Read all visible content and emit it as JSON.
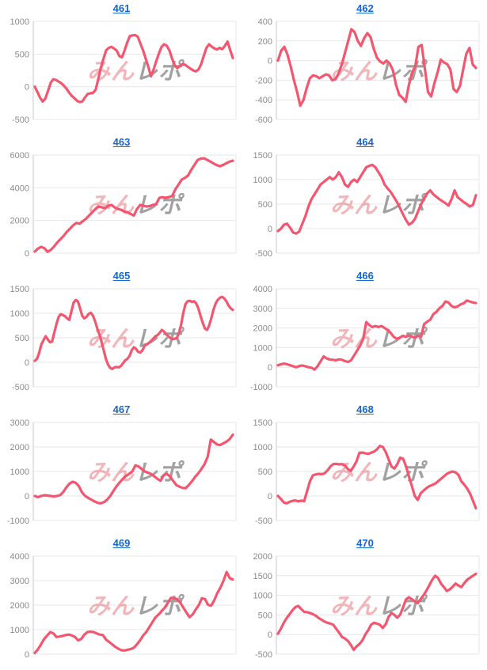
{
  "page": {
    "background": "#ffffff"
  },
  "colors": {
    "line": "#f4566f",
    "grid": "#e7e7e7",
    "axis": "#c8c8c8",
    "plot_right_border": "#e7e7e7",
    "tick_label": "#8b8b8b",
    "link": "#1566d0",
    "watermark_pink": "rgba(232,120,130,0.55)",
    "watermark_gray": "rgba(148,148,148,0.88)"
  },
  "watermark": {
    "left": "みん",
    "right": "レポ"
  },
  "grid_layout": {
    "columns": 2,
    "rows": 5
  },
  "chart_data": [
    {
      "type": "line",
      "title": "461",
      "xlabel": "",
      "ylabel": "",
      "ylim": [
        -500,
        1000
      ],
      "yticks": [
        1000,
        500,
        0,
        -500
      ],
      "grid": true,
      "values": [
        0,
        -80,
        -170,
        -225,
        -180,
        -60,
        60,
        115,
        105,
        80,
        55,
        15,
        -30,
        -90,
        -140,
        -175,
        -215,
        -235,
        -225,
        -165,
        -110,
        -100,
        -95,
        -50,
        115,
        285,
        430,
        555,
        595,
        610,
        585,
        555,
        470,
        450,
        555,
        680,
        775,
        785,
        790,
        765,
        660,
        555,
        430,
        305,
        160,
        265,
        390,
        510,
        610,
        650,
        625,
        555,
        430,
        325,
        285,
        320,
        345,
        335,
        305,
        275,
        250,
        235,
        265,
        345,
        470,
        595,
        650,
        615,
        585,
        570,
        595,
        575,
        625,
        690,
        560,
        440
      ]
    },
    {
      "type": "line",
      "title": "462",
      "xlabel": "",
      "ylabel": "",
      "ylim": [
        -600,
        400
      ],
      "yticks": [
        400,
        200,
        0,
        -200,
        -400,
        -600
      ],
      "grid": true,
      "values": [
        0,
        100,
        140,
        60,
        -60,
        -200,
        -320,
        -460,
        -400,
        -280,
        -180,
        -150,
        -160,
        -180,
        -160,
        -140,
        -150,
        -200,
        -190,
        -130,
        -40,
        80,
        200,
        320,
        290,
        200,
        150,
        230,
        280,
        240,
        120,
        30,
        -10,
        -30,
        0,
        -30,
        -100,
        -250,
        -350,
        -380,
        -420,
        -250,
        -120,
        -60,
        140,
        160,
        -80,
        -320,
        -365,
        -230,
        -120,
        10,
        -20,
        -35,
        -90,
        -290,
        -320,
        -260,
        -90,
        70,
        130,
        -40,
        -75
      ]
    },
    {
      "type": "line",
      "title": "463",
      "xlabel": "",
      "ylabel": "",
      "ylim": [
        0,
        6000
      ],
      "yticks": [
        6000,
        4000,
        2000,
        0
      ],
      "grid": true,
      "values": [
        100,
        280,
        380,
        300,
        80,
        200,
        400,
        650,
        850,
        1050,
        1300,
        1500,
        1700,
        1850,
        1800,
        1950,
        2100,
        2300,
        2500,
        2700,
        2850,
        2800,
        2750,
        2900,
        2950,
        2800,
        2700,
        2650,
        2550,
        2500,
        2400,
        2300,
        2700,
        2950,
        2900,
        2850,
        2880,
        2950,
        3000,
        3380,
        3420,
        3380,
        3430,
        3500,
        3900,
        4200,
        4500,
        4600,
        4750,
        5100,
        5400,
        5700,
        5780,
        5800,
        5700,
        5600,
        5480,
        5380,
        5320,
        5400,
        5500,
        5600,
        5650
      ]
    },
    {
      "type": "line",
      "title": "464",
      "xlabel": "",
      "ylabel": "",
      "ylim": [
        -500,
        1500
      ],
      "yticks": [
        1500,
        1000,
        500,
        0,
        -500
      ],
      "grid": true,
      "values": [
        -50,
        0,
        80,
        100,
        20,
        -80,
        -100,
        -60,
        100,
        250,
        450,
        600,
        700,
        800,
        900,
        950,
        1000,
        1050,
        1000,
        1050,
        1150,
        1050,
        900,
        850,
        950,
        1000,
        950,
        1050,
        1150,
        1250,
        1280,
        1300,
        1250,
        1150,
        1050,
        900,
        820,
        750,
        650,
        550,
        430,
        300,
        180,
        80,
        120,
        200,
        350,
        500,
        620,
        720,
        780,
        700,
        650,
        600,
        560,
        520,
        470,
        600,
        780,
        640,
        590,
        540,
        500,
        450,
        480,
        680
      ]
    },
    {
      "type": "line",
      "title": "465",
      "xlabel": "",
      "ylabel": "",
      "ylim": [
        -500,
        1500
      ],
      "yticks": [
        1500,
        1000,
        500,
        0,
        -500
      ],
      "grid": true,
      "values": [
        30,
        70,
        190,
        365,
        450,
        530,
        470,
        410,
        420,
        600,
        775,
        920,
        980,
        965,
        940,
        895,
        865,
        1040,
        1215,
        1270,
        1245,
        1100,
        950,
        895,
        925,
        985,
        1010,
        950,
        835,
        690,
        570,
        420,
        245,
        70,
        -45,
        -115,
        -135,
        -105,
        -95,
        -105,
        -75,
        -20,
        40,
        70,
        130,
        245,
        305,
        275,
        215,
        200,
        245,
        335,
        365,
        395,
        435,
        480,
        530,
        555,
        600,
        660,
        630,
        570,
        530,
        495,
        470,
        480,
        495,
        600,
        775,
        1010,
        1185,
        1245,
        1255,
        1230,
        1245,
        1200,
        1100,
        950,
        805,
        690,
        660,
        750,
        895,
        1070,
        1200,
        1275,
        1315,
        1335,
        1305,
        1245,
        1160,
        1100,
        1070
      ]
    },
    {
      "type": "line",
      "title": "466",
      "xlabel": "",
      "ylabel": "",
      "ylim": [
        -1000,
        4000
      ],
      "yticks": [
        4000,
        3000,
        2000,
        1000,
        0,
        -1000
      ],
      "grid": true,
      "values": [
        100,
        150,
        180,
        150,
        100,
        50,
        0,
        60,
        90,
        50,
        0,
        -30,
        -120,
        50,
        300,
        550,
        450,
        390,
        380,
        350,
        400,
        380,
        310,
        270,
        350,
        600,
        850,
        1100,
        1450,
        2300,
        2150,
        2050,
        2100,
        2050,
        2100,
        2000,
        1900,
        1750,
        1550,
        1450,
        1500,
        1600,
        1550,
        1620,
        1560,
        1500,
        1600,
        1560,
        2200,
        2320,
        2420,
        2700,
        2820,
        3000,
        3120,
        3350,
        3300,
        3120,
        3050,
        3100,
        3200,
        3260,
        3400,
        3350,
        3300,
        3270
      ]
    },
    {
      "type": "line",
      "title": "467",
      "xlabel": "",
      "ylabel": "",
      "ylim": [
        -1000,
        3000
      ],
      "yticks": [
        3000,
        2000,
        1000,
        0,
        -1000
      ],
      "grid": true,
      "values": [
        0,
        -50,
        0,
        30,
        20,
        0,
        -20,
        0,
        30,
        150,
        350,
        500,
        580,
        540,
        400,
        150,
        0,
        -80,
        -150,
        -220,
        -280,
        -300,
        -250,
        -150,
        0,
        200,
        400,
        550,
        700,
        820,
        900,
        1000,
        1250,
        1200,
        1100,
        1000,
        950,
        900,
        800,
        700,
        620,
        850,
        900,
        800,
        620,
        450,
        380,
        330,
        320,
        450,
        600,
        780,
        920,
        1100,
        1300,
        1600,
        2300,
        2200,
        2100,
        2080,
        2150,
        2220,
        2320,
        2500
      ]
    },
    {
      "type": "line",
      "title": "468",
      "xlabel": "",
      "ylabel": "",
      "ylim": [
        -500,
        1500
      ],
      "yticks": [
        1500,
        1000,
        500,
        0,
        -500
      ],
      "grid": true,
      "values": [
        0,
        -60,
        -130,
        -150,
        -120,
        -100,
        -90,
        -110,
        -95,
        -105,
        100,
        300,
        420,
        440,
        450,
        445,
        460,
        520,
        600,
        650,
        655,
        645,
        650,
        620,
        550,
        510,
        600,
        710,
        880,
        885,
        870,
        860,
        880,
        905,
        950,
        1020,
        1000,
        900,
        750,
        600,
        560,
        650,
        780,
        760,
        600,
        400,
        200,
        0,
        -80,
        50,
        110,
        160,
        200,
        225,
        250,
        300,
        350,
        400,
        450,
        480,
        500,
        480,
        430,
        300,
        230,
        150,
        50,
        -100,
        -250
      ]
    },
    {
      "type": "line",
      "title": "469",
      "xlabel": "",
      "ylabel": "",
      "ylim": [
        0,
        4000
      ],
      "yticks": [
        4000,
        3000,
        2000,
        1000,
        0
      ],
      "grid": true,
      "values": [
        50,
        200,
        400,
        620,
        760,
        900,
        850,
        700,
        720,
        750,
        780,
        800,
        760,
        700,
        560,
        620,
        800,
        900,
        920,
        900,
        850,
        800,
        780,
        600,
        500,
        400,
        300,
        220,
        160,
        150,
        180,
        210,
        260,
        400,
        560,
        760,
        900,
        1100,
        1300,
        1500,
        1620,
        1760,
        1900,
        2100,
        2300,
        2280,
        2250,
        2100,
        1900,
        1700,
        1510,
        1620,
        1820,
        2000,
        2280,
        2250,
        2010,
        1980,
        2200,
        2500,
        2720,
        3000,
        3350,
        3100,
        3050
      ]
    },
    {
      "type": "line",
      "title": "470",
      "xlabel": "",
      "ylabel": "",
      "ylim": [
        -500,
        2000
      ],
      "yticks": [
        2000,
        1500,
        1000,
        500,
        0,
        -500
      ],
      "grid": true,
      "values": [
        20,
        150,
        300,
        420,
        520,
        620,
        700,
        730,
        650,
        580,
        570,
        550,
        520,
        480,
        420,
        380,
        330,
        300,
        280,
        250,
        150,
        50,
        -60,
        -100,
        -160,
        -260,
        -390,
        -300,
        -240,
        -150,
        0,
        110,
        250,
        300,
        280,
        250,
        170,
        260,
        450,
        550,
        500,
        430,
        510,
        700,
        900,
        950,
        900,
        850,
        800,
        900,
        1000,
        1120,
        1260,
        1400,
        1500,
        1440,
        1300,
        1210,
        1110,
        1150,
        1220,
        1300,
        1250,
        1210,
        1310,
        1400,
        1450,
        1500,
        1550
      ]
    }
  ]
}
